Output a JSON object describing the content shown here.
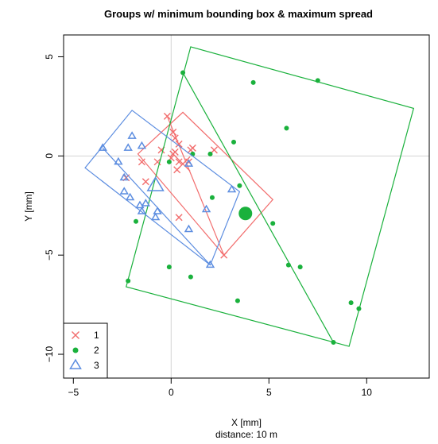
{
  "chart_data": {
    "type": "scatter",
    "title": "Groups w/ minimum bounding box & maximum spread",
    "xlabel": "X [mm]",
    "xlabel2": "distance: 10 m",
    "ylabel": "Y [mm]",
    "xlim": [
      -5.5,
      13.2
    ],
    "ylim": [
      -11.2,
      6.1
    ],
    "xticks": [
      -5,
      0,
      5,
      10
    ],
    "yticks": [
      -10,
      -5,
      0,
      5
    ],
    "xtick_labels": [
      "−5",
      "0",
      "5",
      "10"
    ],
    "ytick_labels": [
      "−10",
      "−5",
      "0",
      "5"
    ],
    "reference_lines": {
      "x": 0,
      "y": 0
    },
    "legend_position": "bottom-left",
    "series": [
      {
        "name": "1",
        "marker": "x",
        "color": "#f26d6d",
        "points": [
          [
            -0.2,
            2.0
          ],
          [
            0.1,
            1.2
          ],
          [
            0.2,
            0.9
          ],
          [
            0.4,
            0.6
          ],
          [
            1.1,
            0.4
          ],
          [
            1.0,
            0.3
          ],
          [
            2.2,
            0.3
          ],
          [
            -0.5,
            0.3
          ],
          [
            0.2,
            0.2
          ],
          [
            -0.7,
            -0.3
          ],
          [
            0.4,
            -0.3
          ],
          [
            0.9,
            -0.3
          ],
          [
            -1.5,
            -0.3
          ],
          [
            0.3,
            -0.7
          ],
          [
            -2.3,
            -1.1
          ],
          [
            -1.3,
            -1.3
          ],
          [
            0.4,
            -3.1
          ],
          [
            2.7,
            -5.0
          ],
          [
            0.0,
            -0.1
          ],
          [
            0.1,
            0.1
          ]
        ],
        "center": [
          0.6,
          -0.4
        ],
        "box": [
          [
            -1.7,
            0.1
          ],
          [
            0.6,
            2.2
          ],
          [
            5.2,
            -2.2
          ],
          [
            2.7,
            -5.0
          ]
        ],
        "spread": [
          [
            -0.2,
            2.0
          ],
          [
            2.7,
            -5.0
          ]
        ]
      },
      {
        "name": "2",
        "marker": "circle",
        "color": "#1ab13c",
        "points": [
          [
            0.6,
            4.2
          ],
          [
            4.2,
            3.7
          ],
          [
            7.5,
            3.8
          ],
          [
            5.9,
            1.4
          ],
          [
            3.2,
            0.7
          ],
          [
            1.1,
            0.1
          ],
          [
            -0.1,
            -0.3
          ],
          [
            2.0,
            0.1
          ],
          [
            3.5,
            -1.5
          ],
          [
            2.1,
            -2.1
          ],
          [
            5.2,
            -3.4
          ],
          [
            -1.8,
            -3.3
          ],
          [
            6.0,
            -5.5
          ],
          [
            6.6,
            -5.6
          ],
          [
            -0.1,
            -5.6
          ],
          [
            1.0,
            -6.1
          ],
          [
            -2.2,
            -6.3
          ],
          [
            3.4,
            -7.3
          ],
          [
            9.2,
            -7.4
          ],
          [
            9.6,
            -7.7
          ],
          [
            8.3,
            -9.4
          ]
        ],
        "center": [
          3.8,
          -2.9
        ],
        "box": [
          [
            1.0,
            5.5
          ],
          [
            12.4,
            2.4
          ],
          [
            9.1,
            -9.6
          ],
          [
            -2.3,
            -6.6
          ]
        ],
        "spread": [
          [
            0.6,
            4.2
          ],
          [
            8.3,
            -9.4
          ]
        ]
      },
      {
        "name": "3",
        "marker": "triangle",
        "color": "#5c8de0",
        "points": [
          [
            -3.5,
            0.4
          ],
          [
            -2.0,
            1.0
          ],
          [
            -1.5,
            0.5
          ],
          [
            -2.2,
            0.4
          ],
          [
            -2.7,
            -0.3
          ],
          [
            0.9,
            -0.4
          ],
          [
            -2.4,
            -1.1
          ],
          [
            -2.4,
            -1.8
          ],
          [
            -2.1,
            -2.1
          ],
          [
            -1.3,
            -2.4
          ],
          [
            -1.6,
            -2.5
          ],
          [
            -1.5,
            -2.8
          ],
          [
            -0.7,
            -2.8
          ],
          [
            -0.8,
            -3.1
          ],
          [
            1.8,
            -2.7
          ],
          [
            0.9,
            -3.7
          ],
          [
            3.1,
            -1.7
          ],
          [
            2.0,
            -5.5
          ]
        ],
        "center": [
          -0.8,
          -1.5
        ],
        "box": [
          [
            -4.4,
            -0.6
          ],
          [
            -2.0,
            2.3
          ],
          [
            3.5,
            -1.8
          ],
          [
            2.0,
            -5.5
          ]
        ],
        "spread": [
          [
            -3.5,
            0.4
          ],
          [
            2.0,
            -5.5
          ]
        ]
      }
    ]
  }
}
